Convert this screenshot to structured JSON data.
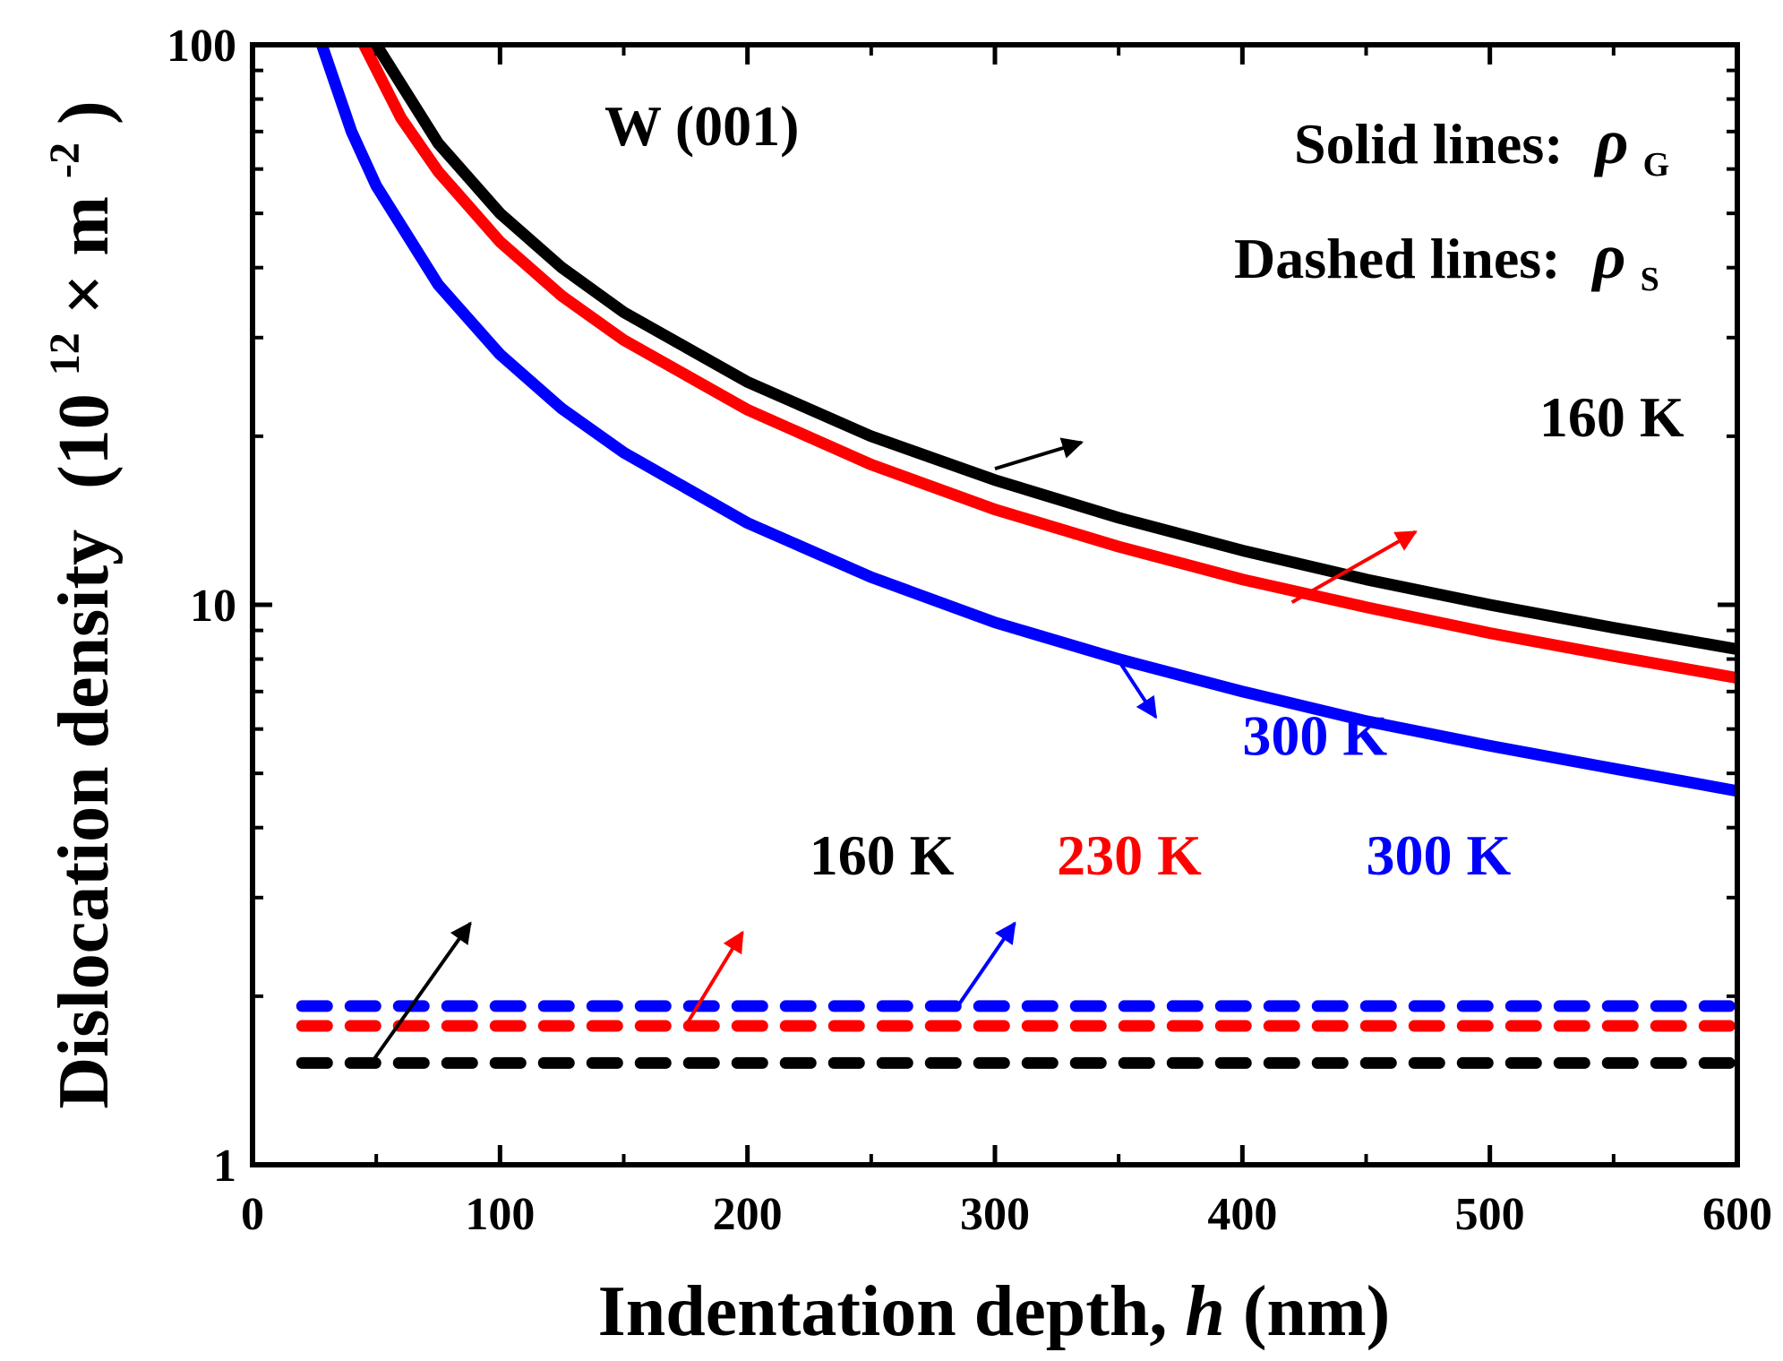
{
  "chart_data": {
    "type": "line",
    "xlabel": "Indentation depth, h (nm)",
    "xlabel_main": "Indentation depth, ",
    "xlabel_var": "h",
    "xlabel_unit": " (nm)",
    "ylabel": "Dislocation density (10^12 × m^-2)",
    "ylabel_main": "Dislocation density",
    "ylabel_unit_open": "(10",
    "ylabel_exp1": "12",
    "ylabel_times": "× m",
    "ylabel_exp2": "-2",
    "ylabel_close": ")",
    "xlim": [
      0,
      600
    ],
    "ylim": [
      1,
      100
    ],
    "yscale": "log",
    "xticks": [
      0,
      100,
      200,
      300,
      400,
      500,
      600
    ],
    "xtick_labels": [
      "0",
      "100",
      "200",
      "300",
      "400",
      "500",
      "600"
    ],
    "yticks": [
      1,
      10,
      100
    ],
    "ytick_labels": [
      "1",
      "10",
      "100"
    ],
    "grid": false,
    "series": [
      {
        "name": "160 K",
        "style": "solid",
        "color": "#000000",
        "x": [
          50,
          75,
          100,
          125,
          150,
          200,
          250,
          300,
          350,
          400,
          450,
          500,
          550,
          600
        ],
        "y": [
          100,
          66.7,
          50,
          40,
          33.3,
          25,
          20,
          16.7,
          14.3,
          12.5,
          11.1,
          10,
          9.1,
          8.33
        ]
      },
      {
        "name": "230 K",
        "style": "solid",
        "color": "#ff0000",
        "x": [
          45,
          60,
          75,
          100,
          125,
          150,
          200,
          250,
          300,
          350,
          400,
          450,
          500,
          550,
          600
        ],
        "y": [
          100,
          74,
          59.4,
          44.5,
          35.6,
          29.7,
          22.3,
          17.8,
          14.8,
          12.7,
          11.1,
          9.9,
          8.9,
          8.1,
          7.4
        ]
      },
      {
        "name": "300 K",
        "style": "solid",
        "color": "#0000ff",
        "x": [
          28,
          40,
          50,
          75,
          100,
          125,
          150,
          200,
          250,
          300,
          350,
          400,
          450,
          500,
          550,
          600
        ],
        "y": [
          100,
          70,
          56,
          37.3,
          28,
          22.4,
          18.7,
          14,
          11.2,
          9.3,
          8,
          7,
          6.2,
          5.6,
          5.1,
          4.65
        ]
      },
      {
        "name": "160 K",
        "style": "dashed",
        "color": "#000000",
        "x": [
          20,
          600
        ],
        "y": [
          1.52,
          1.52
        ]
      },
      {
        "name": "230 K",
        "style": "dashed",
        "color": "#ff0000",
        "x": [
          20,
          600
        ],
        "y": [
          1.77,
          1.77
        ]
      },
      {
        "name": "300 K",
        "style": "dashed",
        "color": "#0000ff",
        "x": [
          20,
          600
        ],
        "y": [
          1.92,
          1.92
        ]
      }
    ],
    "annotations": {
      "material": "W (001)",
      "solid_label": "Solid lines:",
      "dashed_label": "Dashed lines:",
      "rho": "ρ",
      "solid_sub": "G",
      "dashed_sub": "S",
      "curve_labels": [
        {
          "text": "160 K",
          "color": "#000000",
          "at": [
            520,
            20
          ],
          "arrow_from": [
            300,
            17.5
          ],
          "arrow_to": [
            335,
            19.5
          ]
        },
        {
          "text": "230 K",
          "color": "#ff0000",
          "at": [
            640,
            11.7
          ],
          "arrow_from": [
            420,
            10.1
          ],
          "arrow_to": [
            470,
            13.5
          ]
        },
        {
          "text": "300 K",
          "color": "#0000ff",
          "at": [
            400,
            5.4
          ],
          "arrow_from": [
            348,
            8.2
          ],
          "arrow_to": [
            365,
            6.3
          ]
        },
        {
          "text": "160 K",
          "color": "#000000",
          "at": [
            225,
            3.3
          ],
          "arrow_from": [
            48,
            1.52
          ],
          "arrow_to": [
            88,
            2.7
          ]
        },
        {
          "text": "230 K",
          "color": "#ff0000",
          "at": [
            325,
            3.3
          ],
          "arrow_from": [
            175,
            1.77
          ],
          "arrow_to": [
            198,
            2.6
          ]
        },
        {
          "text": "300 K",
          "color": "#0000ff",
          "at": [
            450,
            3.3
          ],
          "arrow_from": [
            285,
            1.92
          ],
          "arrow_to": [
            308,
            2.7
          ]
        }
      ]
    }
  }
}
